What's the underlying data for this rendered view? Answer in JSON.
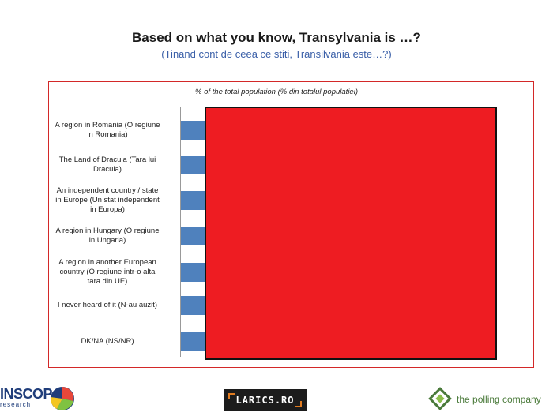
{
  "title": "Based on what you know, Transylvania is …?",
  "subtitle": "(Tinand cont de ceea ce stiti, Transilvania este…?)",
  "chart_data": {
    "type": "bar",
    "orientation": "horizontal",
    "title": "% of the total population (% din totalul populatiei)",
    "categories": [
      "A region in Romania (O regiune in Romania)",
      "The Land of Dracula (Tara lui Dracula)",
      "An independent country / state in Europe (Un stat independent in Europa)",
      "A region in Hungary (O regiune in Ungaria)",
      "A region in another European country (O regiune intr-o alta tara din UE)",
      "I never heard of it (N-au auzit)",
      "DK/NA (NS/NR)"
    ],
    "values_note": "bar values largely obscured by red overlay box",
    "colors": {
      "bar": "#4f81bd",
      "overlay": "#ee1c22",
      "frame": "#d32828"
    }
  },
  "labels": [
    "A region in Romania (O regiune\nin Romania)",
    "The Land of Dracula (Tara lui\nDracula)",
    "An independent country / state\nin Europe (Un stat independent\nin Europa)",
    "A region in Hungary (O regiune\nin Ungaria)",
    "A region in another European\ncountry (O regiune intr-o alta\ntara din UE)",
    "I never heard of it (N-au auzit)",
    "DK/NA (NS/NR)"
  ],
  "logos": {
    "inscop": "INSCOP",
    "inscop_sub": "research",
    "larics": "LARICS.RO",
    "polling": "the polling company"
  }
}
